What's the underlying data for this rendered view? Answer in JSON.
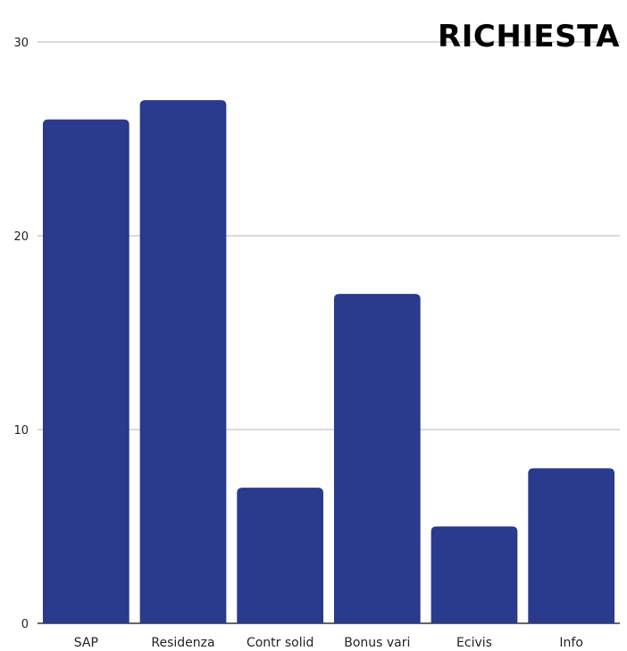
{
  "chart_data": {
    "type": "bar",
    "title": "RICHIESTA",
    "categories": [
      "SAP",
      "Residenza",
      "Contr solid",
      "Bonus vari",
      "Ecivis",
      "Info"
    ],
    "values": [
      26,
      27,
      7,
      17,
      5,
      8
    ],
    "ylim": [
      0,
      30
    ],
    "yticks": [
      "0",
      "10",
      "20",
      "30"
    ],
    "grid": true,
    "bar_color": "#2a3a8c",
    "grid_color": "#b5b5b5",
    "axis_color": "#333333"
  }
}
